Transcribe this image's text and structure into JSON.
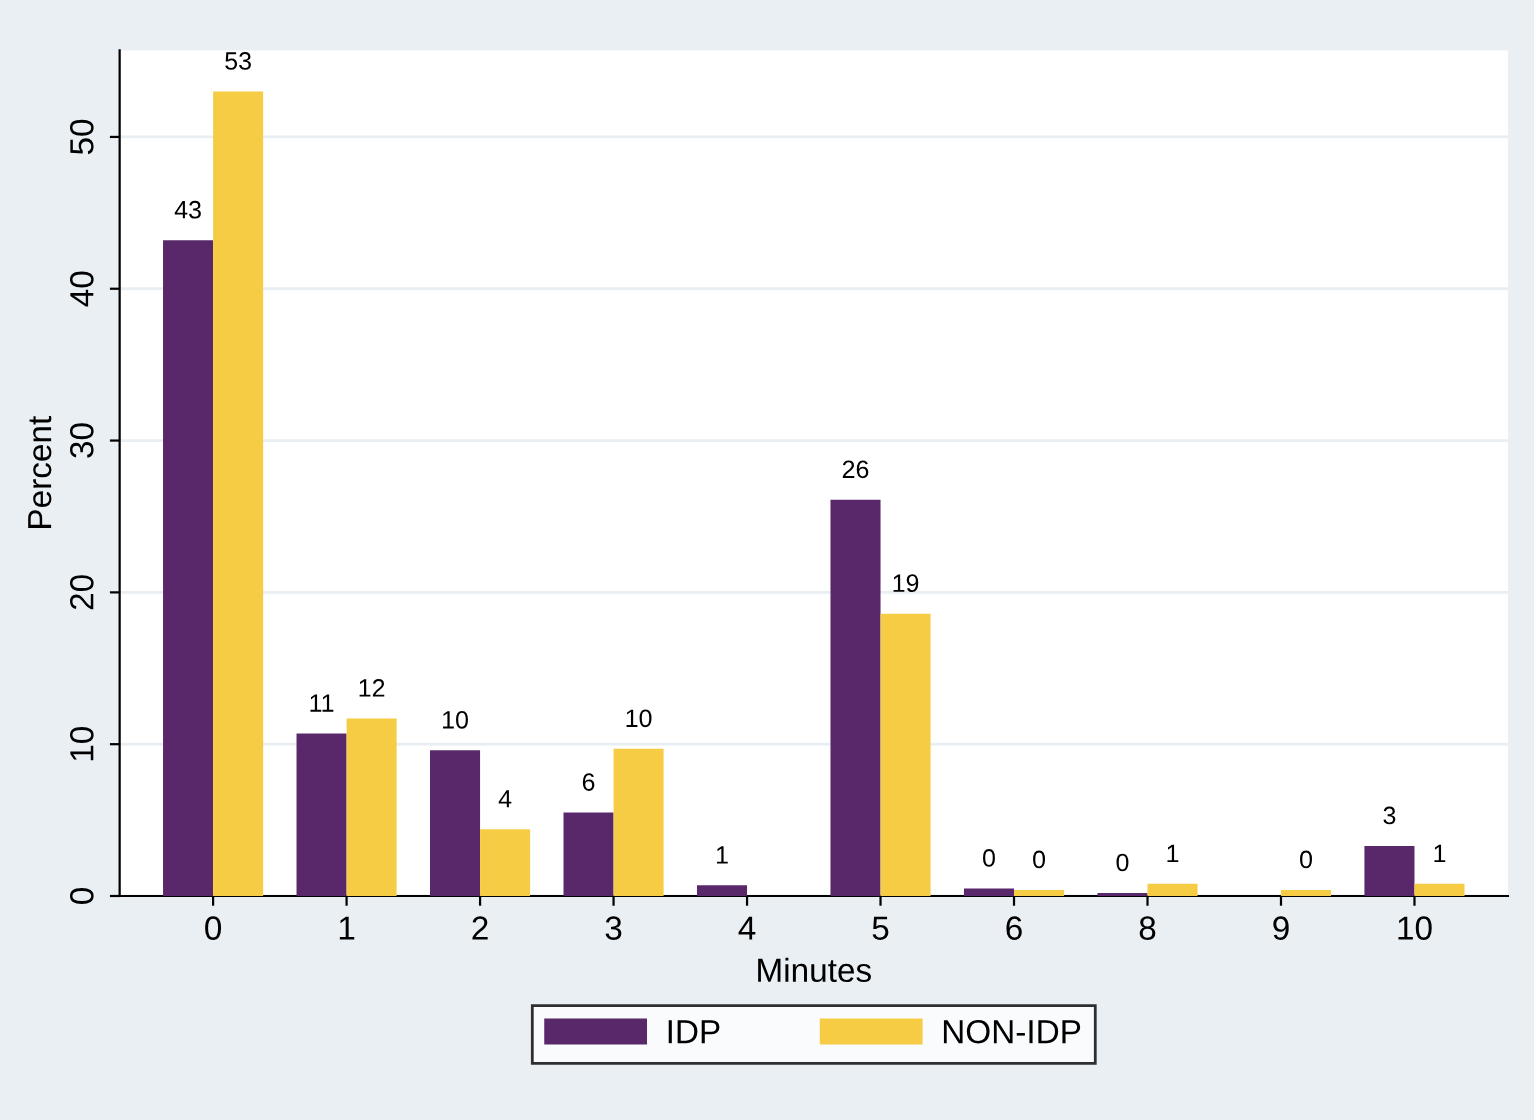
{
  "chart_data": {
    "type": "bar",
    "xlabel": "Minutes",
    "ylabel": "Percent",
    "categories": [
      "0",
      "1",
      "2",
      "3",
      "4",
      "5",
      "6",
      "8",
      "9",
      "10"
    ],
    "series": [
      {
        "name": "IDP",
        "color": "#58286a",
        "values": [
          43.2,
          10.7,
          9.6,
          5.5,
          0.7,
          26.1,
          0.5,
          0.2,
          null,
          3.3
        ],
        "value_labels": [
          "43",
          "11",
          "10",
          "6",
          "1",
          "26",
          "0",
          "0",
          null,
          "3"
        ]
      },
      {
        "name": "NON-IDP",
        "color": "#f7cc45",
        "values": [
          53.0,
          11.7,
          4.4,
          9.7,
          null,
          18.6,
          0.4,
          0.8,
          0.4,
          0.8
        ],
        "value_labels": [
          "53",
          "12",
          "4",
          "10",
          null,
          "19",
          "0",
          "1",
          "0",
          "1"
        ]
      }
    ],
    "ylim": [
      0,
      55.7
    ],
    "yticks": [
      0,
      10,
      20,
      30,
      40,
      50
    ],
    "grid": "y",
    "legend": "bottom"
  }
}
